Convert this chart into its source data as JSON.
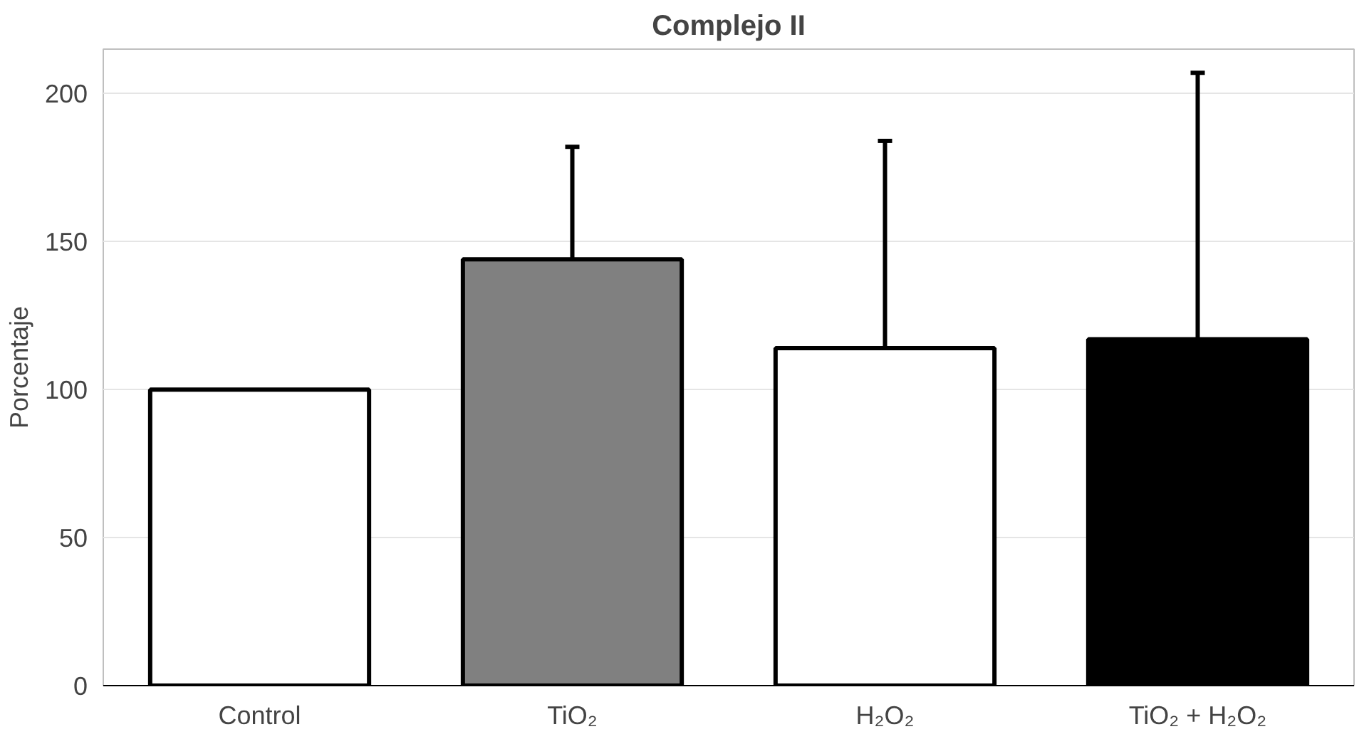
{
  "chart_data": {
    "type": "bar",
    "title": "Complejo II",
    "ylabel": "Porcentaje",
    "categories": [
      "Control",
      "TiO₂",
      "H₂O₂",
      "TiO₂ + H₂O₂"
    ],
    "values": [
      100,
      144,
      114,
      117
    ],
    "colors": [
      "#ffffff",
      "#808080",
      "#ffffff",
      "#000000"
    ],
    "errors": [
      null,
      38,
      70,
      90
    ],
    "ylim": [
      0,
      215
    ],
    "yticks": [
      0,
      50,
      100,
      150,
      200
    ],
    "grid": "y"
  }
}
